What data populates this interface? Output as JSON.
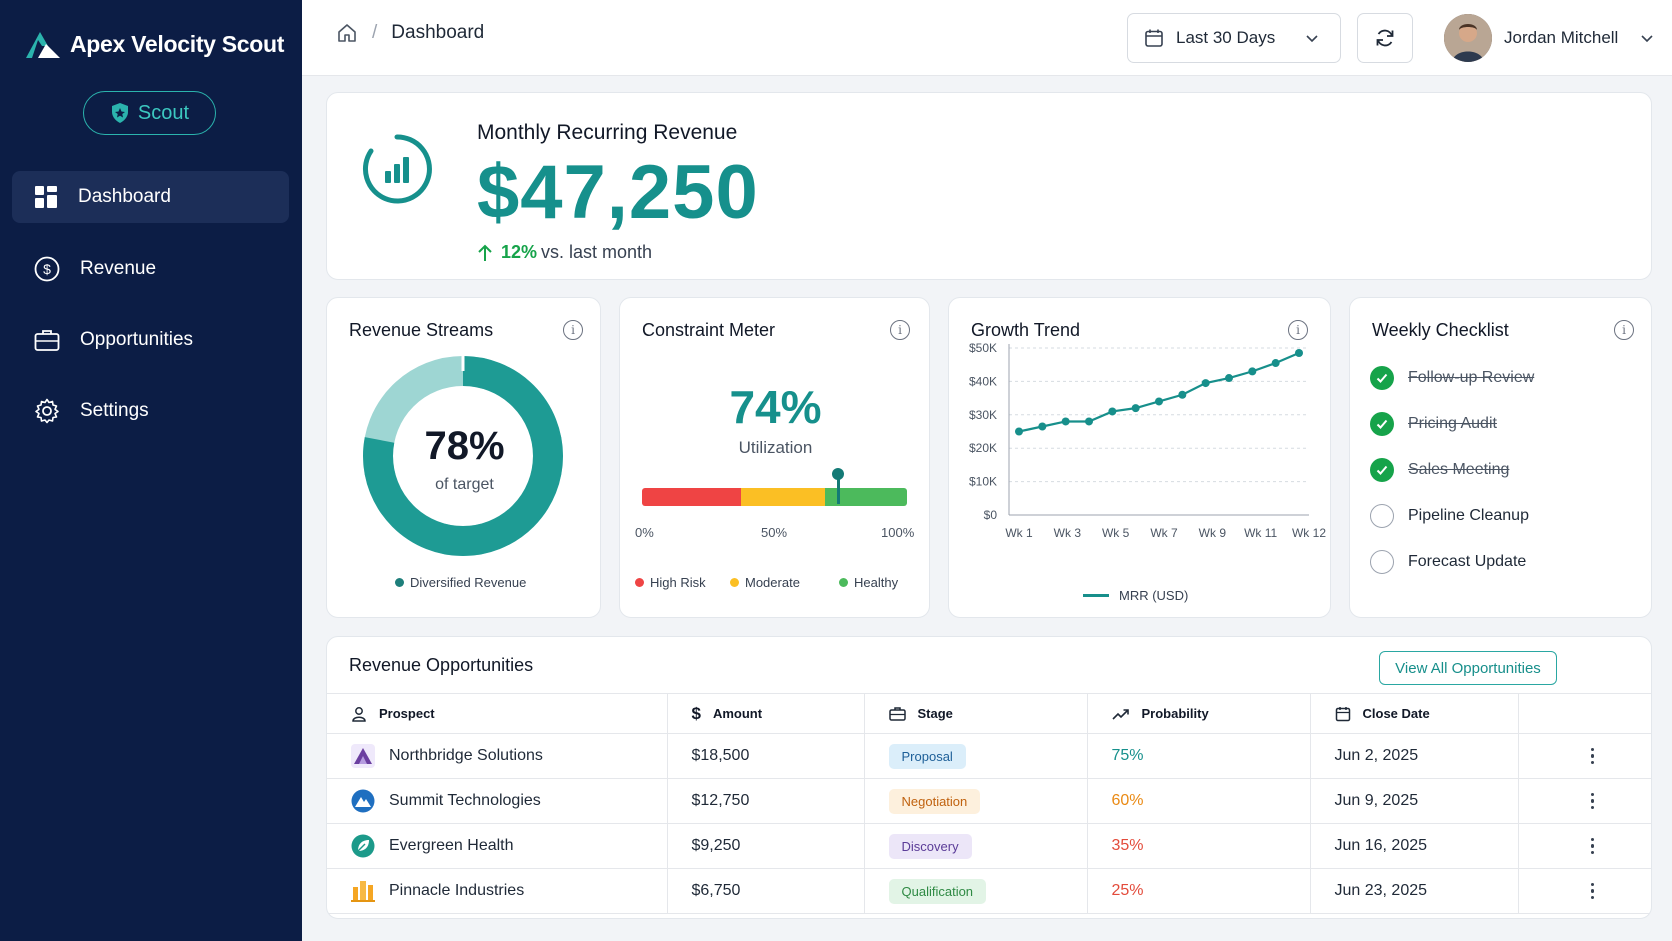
{
  "app": {
    "name": "Apex Velocity Scout",
    "badge": "Scout"
  },
  "sidebar": {
    "items": [
      {
        "label": "Dashboard",
        "icon": "grid-icon"
      },
      {
        "label": "Revenue",
        "icon": "dollar-circle-icon"
      },
      {
        "label": "Opportunities",
        "icon": "briefcase-icon"
      },
      {
        "label": "Settings",
        "icon": "gear-icon"
      }
    ]
  },
  "header": {
    "breadcrumb": "Dashboard",
    "date_range": "Last 30 Days",
    "user_name": "Jordan Mitchell"
  },
  "mrr": {
    "label": "Monthly Recurring Revenue",
    "value": "$47,250",
    "change_pct": "12%",
    "change_text": "vs. last month"
  },
  "revenue_streams": {
    "title": "Revenue Streams",
    "percent": "78%",
    "sub": "of target",
    "legend": "Diversified Revenue",
    "value": 0.78
  },
  "constraint": {
    "title": "Constraint Meter",
    "percent": "74%",
    "label": "Utilization",
    "value": 0.74,
    "ticks": [
      "0%",
      "50%",
      "100%"
    ],
    "legend": [
      "High Risk",
      "Moderate",
      "Healthy"
    ]
  },
  "growth": {
    "title": "Growth Trend",
    "legend": "MRR (USD)"
  },
  "checklist": {
    "title": "Weekly Checklist",
    "items": [
      {
        "label": "Follow-up Review",
        "done": true
      },
      {
        "label": "Pricing Audit",
        "done": true
      },
      {
        "label": "Sales Meeting",
        "done": true
      },
      {
        "label": "Pipeline Cleanup",
        "done": false
      },
      {
        "label": "Forecast Update",
        "done": false
      }
    ]
  },
  "opportunities": {
    "title": "Revenue Opportunities",
    "view_all": "View All Opportunities",
    "columns": [
      "Prospect",
      "Amount",
      "Stage",
      "Probability",
      "Close Date"
    ],
    "rows": [
      {
        "prospect": "Northbridge Solutions",
        "amount": "$18,500",
        "stage": "Proposal",
        "probability": "75%",
        "close": "Jun 2, 2025"
      },
      {
        "prospect": "Summit Technologies",
        "amount": "$12,750",
        "stage": "Negotiation",
        "probability": "60%",
        "close": "Jun 9, 2025"
      },
      {
        "prospect": "Evergreen Health",
        "amount": "$9,250",
        "stage": "Discovery",
        "probability": "35%",
        "close": "Jun 16, 2025"
      },
      {
        "prospect": "Pinnacle Industries",
        "amount": "$6,750",
        "stage": "Qualification",
        "probability": "25%",
        "close": "Jun 23, 2025"
      }
    ]
  },
  "colors": {
    "accent": "#16908c",
    "sidebar": "#0c1d45",
    "high_risk": "#ef4444",
    "moderate": "#fbbf24",
    "healthy": "#4cba5c"
  },
  "chart_data": {
    "type": "line",
    "x": [
      "Wk 1",
      "Wk 2",
      "Wk 3",
      "Wk 4",
      "Wk 5",
      "Wk 6",
      "Wk 7",
      "Wk 8",
      "Wk 9",
      "Wk 10",
      "Wk 11",
      "Wk 12",
      "Wk 13"
    ],
    "x_tick_labels": [
      "Wk 1",
      "Wk 3",
      "Wk 5",
      "Wk 7",
      "Wk 9",
      "Wk 11",
      "Wk 12"
    ],
    "series": [
      {
        "name": "MRR (USD)",
        "values": [
          25000,
          26500,
          28000,
          28000,
          31000,
          32000,
          34000,
          36000,
          39500,
          41000,
          43000,
          45500,
          48500
        ]
      }
    ],
    "y_tick_labels": [
      "$0",
      "$10K",
      "$20K",
      "$30K",
      "$40K",
      "$50K"
    ],
    "ylim": [
      0,
      50000
    ],
    "grid": true,
    "legend": "bottom"
  }
}
